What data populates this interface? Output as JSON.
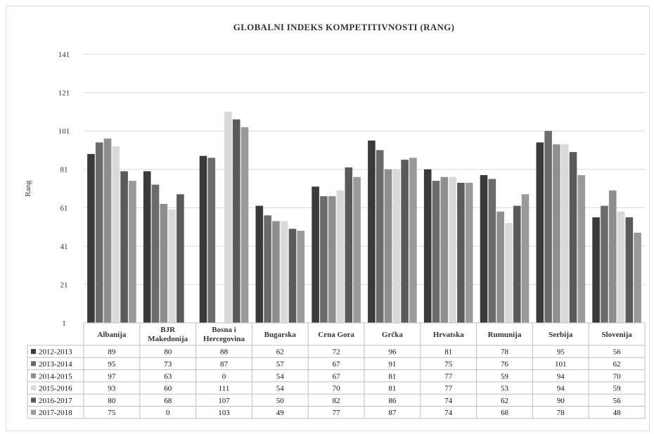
{
  "chart_data": {
    "type": "bar",
    "title": "GLOBALNI INDEKS KOMPETITIVNOSTI (RANG)",
    "ylabel": "Rang",
    "xlabel": "",
    "ylim": [
      1,
      141
    ],
    "yticks": [
      1,
      21,
      41,
      61,
      81,
      101,
      121,
      141
    ],
    "grid": true,
    "legend": "data-table-below",
    "categories": [
      "Albanija",
      "BJR Makedonija",
      "Bosna i Hercegovina",
      "Bugarska",
      "Crna Gora",
      "Grčka",
      "Hrvatska",
      "Rumunija",
      "Serbija",
      "Slovenija"
    ],
    "category_lines": [
      [
        "Albanija"
      ],
      [
        "BJR",
        "Makedonija"
      ],
      [
        "Bosna i",
        "Hercegovina"
      ],
      [
        "Bugarska"
      ],
      [
        "Crna Gora"
      ],
      [
        "Grčka"
      ],
      [
        "Hrvatska"
      ],
      [
        "Rumunija"
      ],
      [
        "Serbija"
      ],
      [
        "Slovenija"
      ]
    ],
    "series": [
      {
        "name": "2012-2013",
        "color": "#3a3a3a",
        "values": [
          89,
          80,
          88,
          62,
          72,
          96,
          81,
          78,
          95,
          56
        ]
      },
      {
        "name": "2013-2014",
        "color": "#6b6b6b",
        "values": [
          95,
          73,
          87,
          57,
          67,
          91,
          75,
          76,
          101,
          62
        ]
      },
      {
        "name": "2014-2015",
        "color": "#8e8e8e",
        "values": [
          97,
          63,
          0,
          54,
          67,
          81,
          77,
          59,
          94,
          70
        ]
      },
      {
        "name": "2015-2016",
        "color": "#d9d9d9",
        "values": [
          93,
          60,
          111,
          54,
          70,
          81,
          77,
          53,
          94,
          59
        ]
      },
      {
        "name": "2016-2017",
        "color": "#5a5a5a",
        "values": [
          80,
          68,
          107,
          50,
          82,
          86,
          74,
          62,
          90,
          56
        ]
      },
      {
        "name": "2017-2018",
        "color": "#9a9a9a",
        "values": [
          75,
          0,
          103,
          49,
          77,
          87,
          74,
          68,
          78,
          48
        ]
      }
    ]
  }
}
